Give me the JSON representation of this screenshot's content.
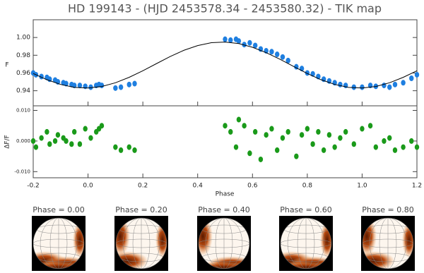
{
  "chart_data": [
    {
      "type": "scatter",
      "title": "HD 199143 - (HJD 2453578.34 - 2453580.32) - TIK map",
      "ylabel": "F",
      "xlim": [
        -0.2,
        1.2
      ],
      "ylim": [
        0.923,
        1.02
      ],
      "yticks": [
        0.94,
        0.96,
        0.98,
        {
          "value": 1,
          "label": "1.00"
        }
      ],
      "series": [
        {
          "type": "scatter",
          "color": "#1f7fe0",
          "x": [
            -0.2,
            -0.19,
            -0.17,
            -0.15,
            -0.14,
            -0.12,
            -0.11,
            -0.09,
            -0.08,
            -0.06,
            -0.05,
            -0.03,
            -0.01,
            0.01,
            0.03,
            0.04,
            0.05,
            0.1,
            0.12,
            0.15,
            0.17,
            0.5,
            0.52,
            0.54,
            0.55,
            0.57,
            0.59,
            0.61,
            0.63,
            0.65,
            0.67,
            0.69,
            0.71,
            0.73,
            0.76,
            0.78,
            0.8,
            0.82,
            0.84,
            0.86,
            0.88,
            0.9,
            0.92,
            0.94,
            0.97,
            1.0,
            1.03,
            1.05,
            1.08,
            1.1,
            1.12,
            1.15,
            1.18,
            1.2
          ],
          "values": [
            0.96,
            0.958,
            0.956,
            0.955,
            0.953,
            0.952,
            0.95,
            0.949,
            0.948,
            0.947,
            0.946,
            0.946,
            0.945,
            0.944,
            0.946,
            0.947,
            0.946,
            0.943,
            0.944,
            0.947,
            0.948,
            0.998,
            0.997,
            0.998,
            0.996,
            0.992,
            0.994,
            0.991,
            0.987,
            0.985,
            0.984,
            0.981,
            0.978,
            0.974,
            0.967,
            0.965,
            0.96,
            0.959,
            0.956,
            0.953,
            0.951,
            0.949,
            0.947,
            0.946,
            0.944,
            0.944,
            0.946,
            0.945,
            0.946,
            0.944,
            0.947,
            0.949,
            0.954,
            0.958
          ]
        },
        {
          "type": "line",
          "color": "#000000",
          "x": [
            -0.2,
            -0.15,
            -0.1,
            -0.05,
            0,
            0.05,
            0.1,
            0.15,
            0.2,
            0.25,
            0.3,
            0.35,
            0.4,
            0.45,
            0.5,
            0.55,
            0.6,
            0.65,
            0.7,
            0.75,
            0.8,
            0.85,
            0.9,
            0.95,
            1.0,
            1.05,
            1.1,
            1.15,
            1.2
          ],
          "values": [
            0.9594,
            0.9524,
            0.9471,
            0.9438,
            0.9431,
            0.9448,
            0.949,
            0.9551,
            0.9625,
            0.9706,
            0.9786,
            0.9856,
            0.9909,
            0.9942,
            0.9949,
            0.9932,
            0.989,
            0.9829,
            0.9755,
            0.9674,
            0.9594,
            0.9524,
            0.9471,
            0.9438,
            0.9431,
            0.9448,
            0.949,
            0.9551,
            0.9625
          ]
        }
      ]
    },
    {
      "type": "scatter",
      "ylabel": "ΔF/F",
      "xlabel": "Phase",
      "xlim": [
        -0.2,
        1.2
      ],
      "ylim": [
        -0.012,
        0.0115
      ],
      "xticks": [
        -0.2,
        {
          "value": 0,
          "label": "0.0"
        },
        0.2,
        0.4,
        0.6,
        0.8,
        {
          "value": 1,
          "label": "1.0"
        },
        1.2
      ],
      "yticks": [
        {
          "value": -0.01,
          "label": "-0.010"
        },
        {
          "value": 0,
          "label": "0.000"
        },
        {
          "value": 0.01,
          "label": "0.010"
        }
      ],
      "series": [
        {
          "type": "scatter",
          "color": "#1a9a1a",
          "x": [
            -0.2,
            -0.19,
            -0.17,
            -0.15,
            -0.14,
            -0.12,
            -0.11,
            -0.09,
            -0.08,
            -0.06,
            -0.05,
            -0.03,
            -0.01,
            0.01,
            0.03,
            0.04,
            0.05,
            0.1,
            0.12,
            0.15,
            0.17,
            0.5,
            0.52,
            0.54,
            0.55,
            0.57,
            0.59,
            0.61,
            0.63,
            0.65,
            0.67,
            0.69,
            0.71,
            0.73,
            0.76,
            0.78,
            0.8,
            0.82,
            0.84,
            0.86,
            0.88,
            0.9,
            0.92,
            0.94,
            0.97,
            1.0,
            1.03,
            1.05,
            1.08,
            1.1,
            1.12,
            1.15,
            1.18,
            1.2
          ],
          "values": [
            0.0,
            -0.002,
            0.001,
            0.003,
            -0.001,
            0.0,
            0.002,
            0.001,
            0.0,
            -0.001,
            0.003,
            -0.001,
            0.004,
            0.001,
            0.003,
            0.004,
            0.005,
            -0.002,
            -0.003,
            -0.002,
            -0.003,
            0.005,
            0.003,
            -0.002,
            0.007,
            0.005,
            -0.004,
            0.003,
            -0.006,
            0.002,
            0.004,
            -0.003,
            0.001,
            0.003,
            -0.005,
            0.002,
            0.004,
            -0.001,
            0.003,
            -0.003,
            0.002,
            -0.002,
            0.001,
            0.003,
            -0.001,
            0.004,
            0.005,
            -0.002,
            0.0,
            0.001,
            -0.003,
            -0.002,
            0.0,
            -0.002
          ]
        }
      ]
    }
  ],
  "maps": {
    "labels": [
      "Phase = 0.00",
      "Phase = 0.20",
      "Phase = 0.40",
      "Phase = 0.60",
      "Phase = 0.80"
    ]
  }
}
